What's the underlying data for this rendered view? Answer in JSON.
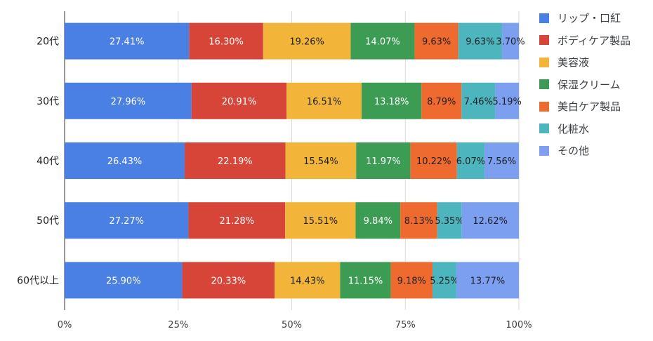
{
  "chart_data": {
    "type": "bar",
    "orientation": "horizontal",
    "stacked": "percent",
    "title": "",
    "xlabel": "",
    "ylabel": "",
    "xlim": [
      0,
      100
    ],
    "x_ticks": [
      "0%",
      "25%",
      "50%",
      "75%",
      "100%"
    ],
    "grid": true,
    "legend_position": "right",
    "categories": [
      "20代",
      "30代",
      "40代",
      "50代",
      "60代以上"
    ],
    "series": [
      {
        "name": "リップ・口紅",
        "color": "#4a7fe3",
        "label_color": "#ffffff",
        "values": [
          27.41,
          27.96,
          26.43,
          27.27,
          25.9
        ],
        "labels": [
          "27.41%",
          "27.96%",
          "26.43%",
          "27.27%",
          "25.90%"
        ]
      },
      {
        "name": "ボディケア製品",
        "color": "#d64537",
        "label_color": "#ffffff",
        "values": [
          16.3,
          20.91,
          22.19,
          21.28,
          20.33
        ],
        "labels": [
          "16.30%",
          "20.91%",
          "22.19%",
          "21.28%",
          "20.33%"
        ]
      },
      {
        "name": "美容液",
        "color": "#f2b53a",
        "label_color": "#202124",
        "values": [
          19.26,
          16.51,
          15.54,
          15.51,
          14.43
        ],
        "labels": [
          "19.26%",
          "16.51%",
          "15.54%",
          "15.51%",
          "14.43%"
        ]
      },
      {
        "name": "保湿クリーム",
        "color": "#3d9c54",
        "label_color": "#ffffff",
        "values": [
          14.07,
          13.18,
          11.97,
          9.84,
          11.15
        ],
        "labels": [
          "14.07%",
          "13.18%",
          "11.97%",
          "9.84%",
          "11.15%"
        ]
      },
      {
        "name": "美白ケア製品",
        "color": "#ef6a2e",
        "label_color": "#202124",
        "values": [
          9.63,
          8.79,
          10.22,
          8.13,
          9.18
        ],
        "labels": [
          "9.63%",
          "8.79%",
          "10.22%",
          "8.13%",
          "9.18%"
        ]
      },
      {
        "name": "化粧水",
        "color": "#4cb5bd",
        "label_color": "#202124",
        "values": [
          9.63,
          7.46,
          6.07,
          5.35,
          5.25
        ],
        "labels": [
          "9.63%",
          "7.46%",
          "6.07%",
          "5.35%",
          "5.25%"
        ]
      },
      {
        "name": "その他",
        "color": "#7d9ff0",
        "label_color": "#202124",
        "values": [
          3.7,
          5.19,
          7.56,
          12.62,
          13.77
        ],
        "labels": [
          "3.70%",
          "5.19%",
          "7.56%",
          "12.62%",
          "13.77%"
        ]
      }
    ]
  }
}
